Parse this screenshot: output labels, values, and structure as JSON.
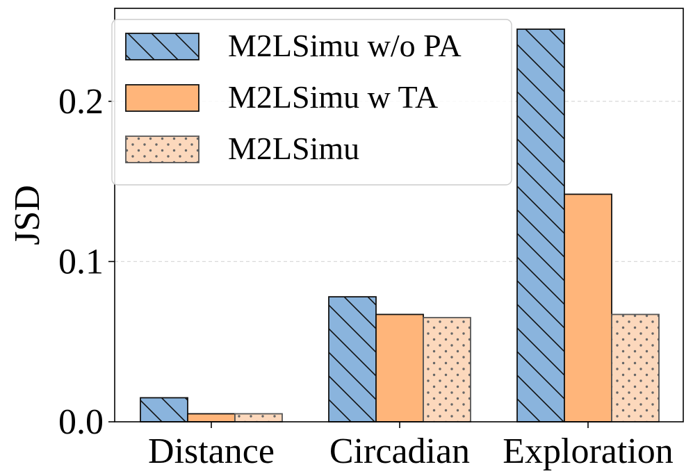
{
  "chart_data": {
    "type": "bar",
    "title": "",
    "xlabel": "",
    "ylabel": "JSD",
    "ylim": [
      0,
      0.258
    ],
    "yticks": [
      0.0,
      0.1,
      0.2
    ],
    "ytick_labels": [
      "0.0",
      "0.1",
      "0.2"
    ],
    "grid": "horizontal dashed",
    "legend_position": "top-left",
    "categories": [
      "Distance",
      "Circadian",
      "Exploration"
    ],
    "series": [
      {
        "name": "M2LSimu w/o PA",
        "values": [
          0.015,
          0.078,
          0.245
        ],
        "color": "#8ab4dd",
        "pattern": "diagonal-hatch"
      },
      {
        "name": "M2LSimu w TA",
        "values": [
          0.005,
          0.067,
          0.142
        ],
        "color": "#ffb57a",
        "pattern": "solid"
      },
      {
        "name": "M2LSimu",
        "values": [
          0.005,
          0.065,
          0.067
        ],
        "color": "#fcd8bc",
        "pattern": "dots"
      }
    ]
  }
}
